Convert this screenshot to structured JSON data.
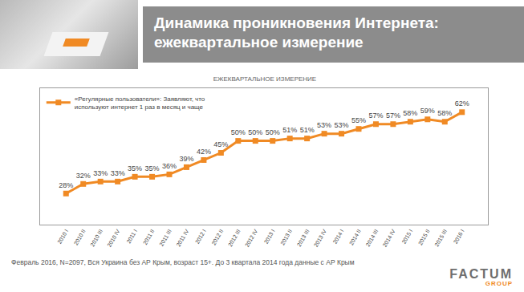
{
  "chart_data": {
    "type": "line",
    "title": "Динамика проникновения Интернета: ежеквартальное измерение",
    "subtitle": "ЕЖЕКВАРТАЛЬНОЕ ИЗМЕРЕНИЕ",
    "categories": [
      "2010 I",
      "2010 II",
      "2010 III",
      "2010 IV",
      "2011 I",
      "2011 II",
      "2011 III",
      "2011 IV",
      "2012 I",
      "2012 II",
      "2012 III",
      "2012 IV",
      "2013 I",
      "2013 II",
      "2013 III",
      "2013 IV",
      "2014 I",
      "2014 II",
      "2014 III",
      "2014 IV",
      "2015 I",
      "2015 II",
      "2015 III",
      "2016 I"
    ],
    "series": [
      {
        "name": "«Регулярные пользователи»: Заявляют, что используют интернет 1 раз в месяц и чаще",
        "color": "#f08a24",
        "marker": "square",
        "values": [
          28,
          32,
          33,
          33,
          35,
          35,
          36,
          39,
          42,
          45,
          50,
          50,
          50,
          51,
          51,
          53,
          53,
          55,
          57,
          57,
          58,
          59,
          58,
          62
        ],
        "value_labels": [
          "28%",
          "32%",
          "33%",
          "33%",
          "35%",
          "35%",
          "36%",
          "39%",
          "42%",
          "45%",
          "50%",
          "50%",
          "50%",
          "51%",
          "51%",
          "53%",
          "53%",
          "55%",
          "57%",
          "57%",
          "58%",
          "59%",
          "58%",
          "62%"
        ]
      }
    ],
    "ylim": [
      15,
      72
    ],
    "yticks": [],
    "tick_labels": "x",
    "data_labels": true,
    "legend": "upper left",
    "footer": "Февраль 2016, N=2097, Вся Украина без АР Крым, возраст 15+. До 3 квартала 2014 года данные с АР Крым",
    "logo": "FACTUM GROUP"
  }
}
